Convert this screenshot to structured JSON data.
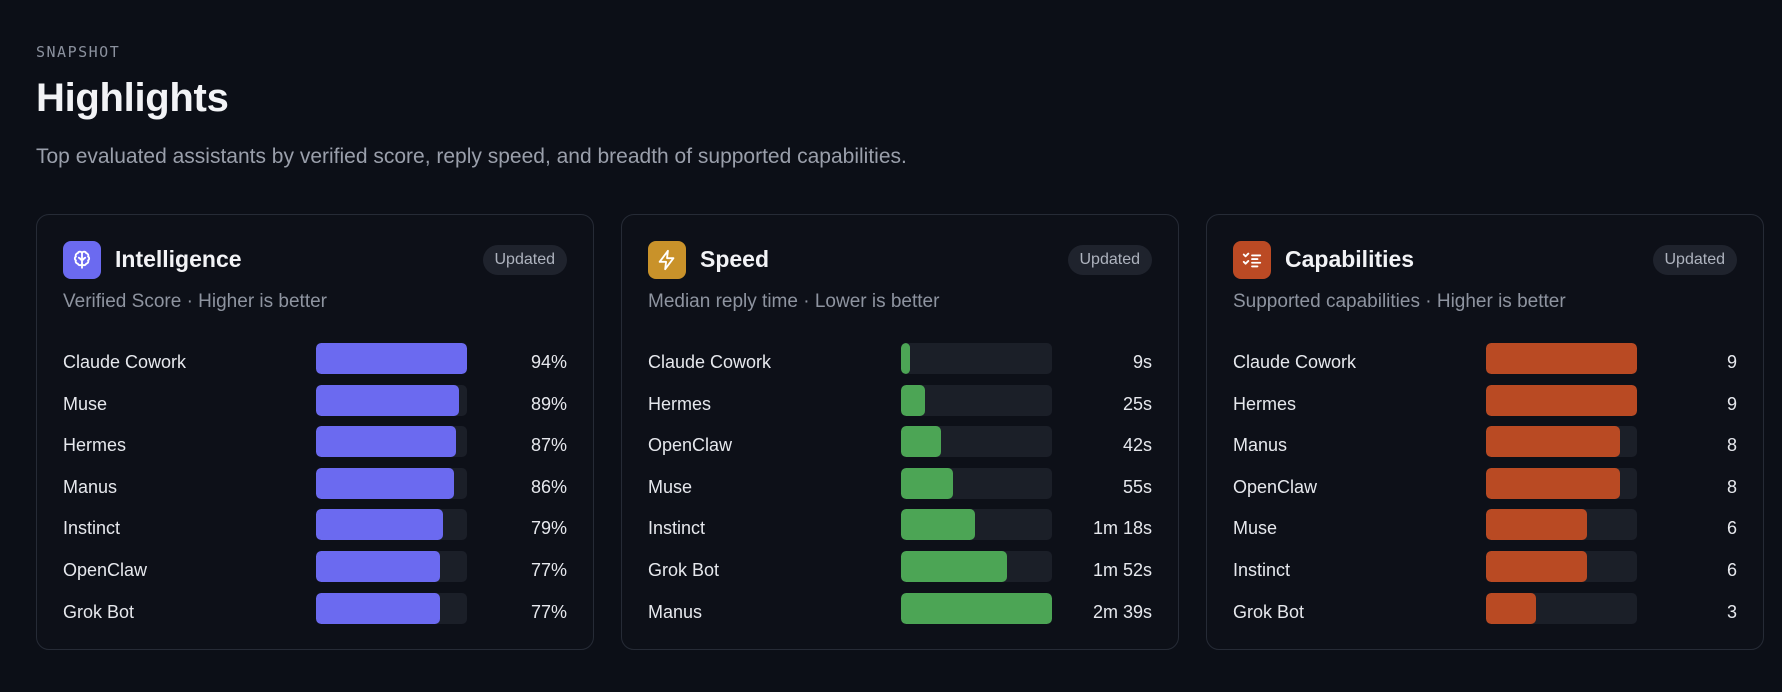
{
  "header": {
    "eyebrow": "SNAPSHOT",
    "title": "Highlights",
    "subtitle": "Top evaluated assistants by verified score, reply speed, and breadth of supported capabilities."
  },
  "cards": [
    {
      "title": "Intelligence",
      "badge": "Updated",
      "subtitle": "Verified Score · Higher is better",
      "icon": "brain-icon",
      "color": "#6b6af0",
      "rows": [
        {
          "name": "Claude Cowork",
          "value": "94%",
          "fraction": 1.0
        },
        {
          "name": "Muse",
          "value": "89%",
          "fraction": 0.947
        },
        {
          "name": "Hermes",
          "value": "87%",
          "fraction": 0.926
        },
        {
          "name": "Manus",
          "value": "86%",
          "fraction": 0.915
        },
        {
          "name": "Instinct",
          "value": "79%",
          "fraction": 0.84
        },
        {
          "name": "OpenClaw",
          "value": "77%",
          "fraction": 0.819
        },
        {
          "name": "Grok Bot",
          "value": "77%",
          "fraction": 0.819
        }
      ]
    },
    {
      "title": "Speed",
      "badge": "Updated",
      "subtitle": "Median reply time · Lower is better",
      "icon": "lightning-icon",
      "color": "#4ca555",
      "rows": [
        {
          "name": "Claude Cowork",
          "value": "9s",
          "fraction": 0.057
        },
        {
          "name": "Hermes",
          "value": "25s",
          "fraction": 0.157
        },
        {
          "name": "OpenClaw",
          "value": "42s",
          "fraction": 0.264
        },
        {
          "name": "Muse",
          "value": "55s",
          "fraction": 0.346
        },
        {
          "name": "Instinct",
          "value": "1m 18s",
          "fraction": 0.491
        },
        {
          "name": "Grok Bot",
          "value": "1m 52s",
          "fraction": 0.704
        },
        {
          "name": "Manus",
          "value": "2m 39s",
          "fraction": 1.0
        }
      ]
    },
    {
      "title": "Capabilities",
      "badge": "Updated",
      "subtitle": "Supported capabilities · Higher is better",
      "icon": "checklist-icon",
      "color": "#b94a23",
      "rows": [
        {
          "name": "Claude Cowork",
          "value": "9",
          "fraction": 1.0
        },
        {
          "name": "Hermes",
          "value": "9",
          "fraction": 1.0
        },
        {
          "name": "Manus",
          "value": "8",
          "fraction": 0.889
        },
        {
          "name": "OpenClaw",
          "value": "8",
          "fraction": 0.889
        },
        {
          "name": "Muse",
          "value": "6",
          "fraction": 0.667
        },
        {
          "name": "Instinct",
          "value": "6",
          "fraction": 0.667
        },
        {
          "name": "Grok Bot",
          "value": "3",
          "fraction": 0.333
        }
      ]
    }
  ]
}
